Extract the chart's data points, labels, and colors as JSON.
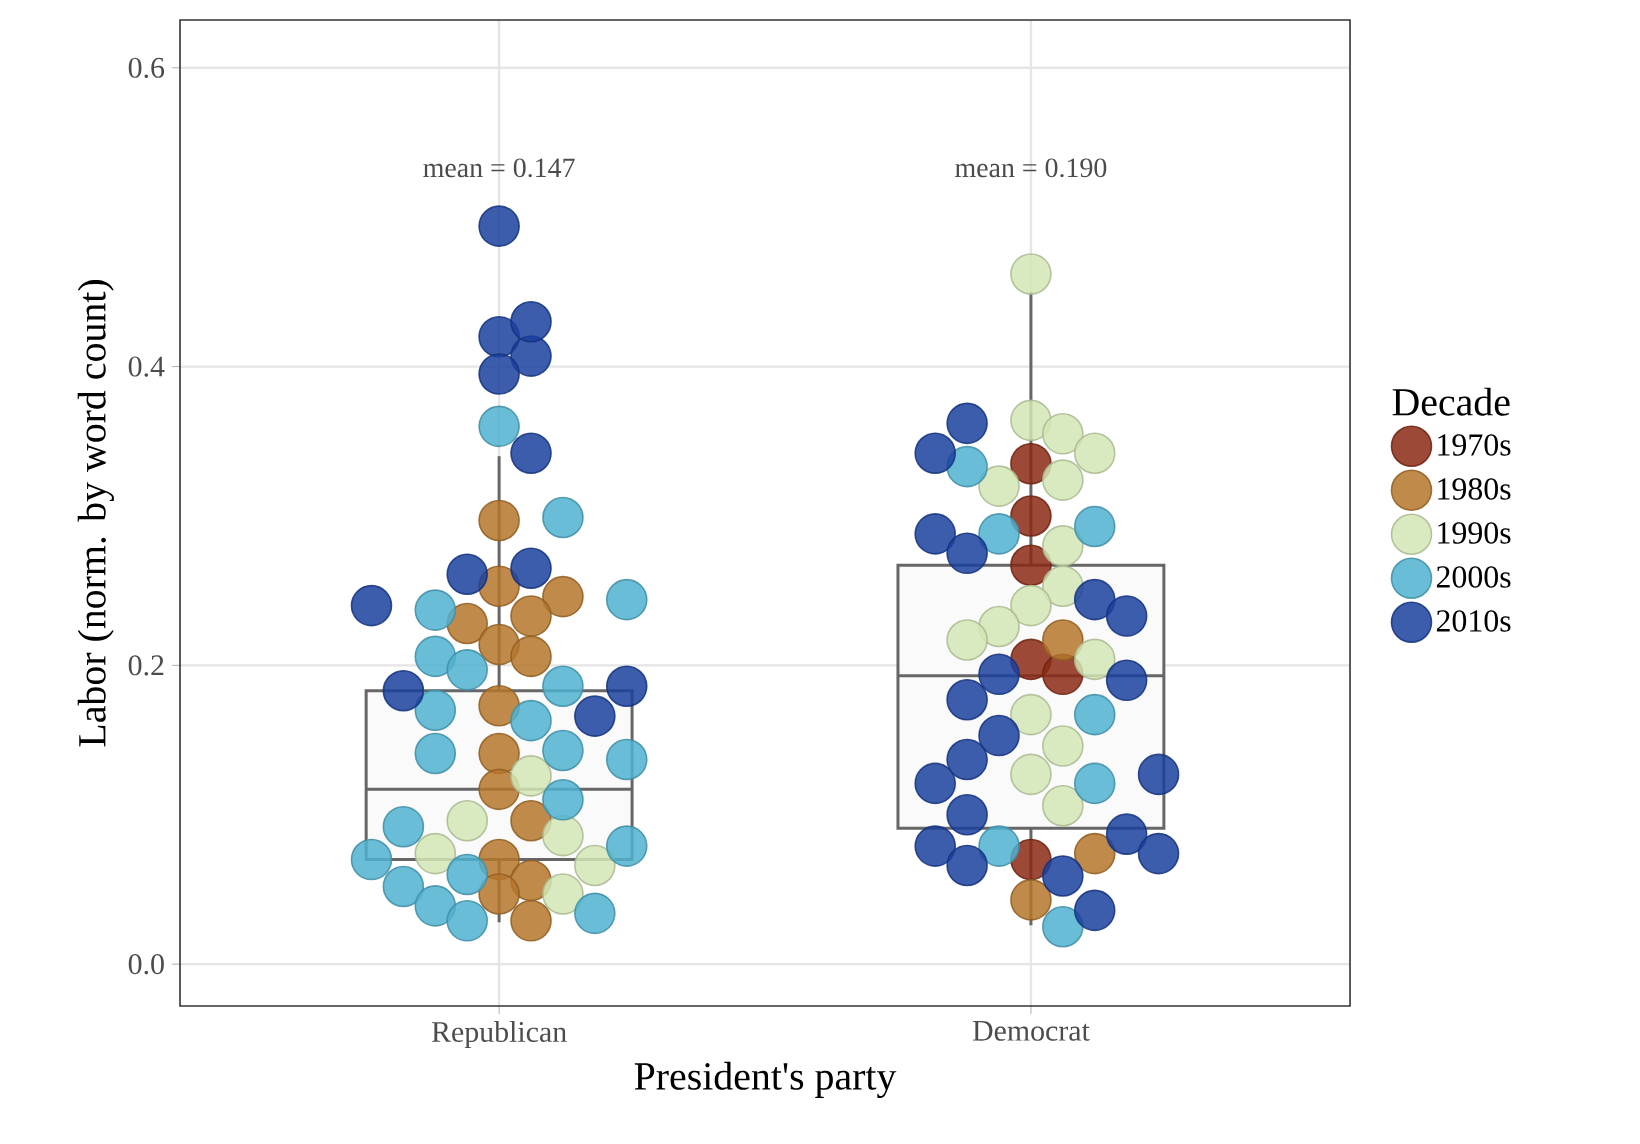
{
  "chart_data": {
    "type": "box",
    "xlabel": "President's party",
    "ylabel": "Labor (norm. by word count)",
    "legend_title": "Decade",
    "categories": [
      "Republican",
      "Democrat"
    ],
    "boxes": [
      {
        "low": 0.028,
        "q1": 0.07,
        "median": 0.117,
        "q3": 0.183,
        "high": 0.34
      },
      {
        "low": 0.026,
        "q1": 0.091,
        "median": 0.193,
        "q3": 0.267,
        "high": 0.45
      }
    ],
    "ylim": [
      -0.028,
      0.632
    ],
    "yticks": [
      {
        "value": 0,
        "label": "0.0"
      },
      {
        "value": 0.2,
        "label": "0.2"
      },
      {
        "value": 0.4,
        "label": "0.4"
      },
      {
        "value": 0.6,
        "label": "0.6"
      }
    ],
    "grid": true,
    "legend": "right",
    "marker": "circle",
    "annotations": [
      "mean = 0.147",
      "mean = 0.190"
    ],
    "series": [
      {
        "name": "1970s",
        "type": "scatter",
        "color": "#8b2a14",
        "x": [
          "Democrat",
          "Democrat",
          "Democrat",
          "Democrat",
          "Democrat",
          "Democrat"
        ],
        "values": [
          0.335,
          0.3,
          0.267,
          0.204,
          0.194,
          0.07
        ]
      },
      {
        "name": "1980s",
        "type": "scatter",
        "color": "#b5762a",
        "x": [
          "Republican",
          "Republican",
          "Republican",
          "Republican",
          "Republican",
          "Republican",
          "Republican",
          "Republican",
          "Republican",
          "Republican",
          "Republican",
          "Republican",
          "Republican",
          "Republican",
          "Republican",
          "Democrat",
          "Democrat",
          "Democrat"
        ],
        "values": [
          0.297,
          0.253,
          0.246,
          0.233,
          0.228,
          0.214,
          0.206,
          0.173,
          0.141,
          0.117,
          0.096,
          0.07,
          0.056,
          0.047,
          0.029,
          0.217,
          0.074,
          0.043
        ]
      },
      {
        "name": "1990s",
        "type": "scatter",
        "color": "#d4e6b5",
        "x": [
          "Republican",
          "Republican",
          "Republican",
          "Republican",
          "Republican",
          "Republican",
          "Democrat",
          "Democrat",
          "Democrat",
          "Democrat",
          "Democrat",
          "Democrat",
          "Democrat",
          "Democrat",
          "Democrat",
          "Democrat",
          "Democrat",
          "Democrat",
          "Democrat",
          "Democrat",
          "Democrat",
          "Democrat"
        ],
        "values": [
          0.126,
          0.096,
          0.086,
          0.074,
          0.066,
          0.047,
          0.462,
          0.364,
          0.355,
          0.342,
          0.324,
          0.32,
          0.28,
          0.253,
          0.24,
          0.226,
          0.217,
          0.204,
          0.167,
          0.146,
          0.127,
          0.106
        ]
      },
      {
        "name": "2000s",
        "type": "scatter",
        "color": "#4fb1d0",
        "x": [
          "Republican",
          "Republican",
          "Republican",
          "Republican",
          "Republican",
          "Republican",
          "Republican",
          "Republican",
          "Republican",
          "Republican",
          "Republican",
          "Republican",
          "Republican",
          "Republican",
          "Republican",
          "Republican",
          "Republican",
          "Republican",
          "Republican",
          "Republican",
          "Republican",
          "Democrat",
          "Democrat",
          "Democrat",
          "Democrat",
          "Democrat",
          "Democrat",
          "Democrat"
        ],
        "values": [
          0.36,
          0.299,
          0.237,
          0.244,
          0.206,
          0.197,
          0.186,
          0.17,
          0.163,
          0.143,
          0.141,
          0.137,
          0.11,
          0.092,
          0.079,
          0.07,
          0.06,
          0.052,
          0.039,
          0.034,
          0.029,
          0.333,
          0.293,
          0.288,
          0.167,
          0.121,
          0.079,
          0.025
        ]
      },
      {
        "name": "2010s",
        "type": "scatter",
        "color": "#1a3f9e",
        "x": [
          "Republican",
          "Republican",
          "Republican",
          "Republican",
          "Republican",
          "Republican",
          "Republican",
          "Republican",
          "Republican",
          "Republican",
          "Republican",
          "Republican",
          "Democrat",
          "Democrat",
          "Democrat",
          "Democrat",
          "Democrat",
          "Democrat",
          "Democrat",
          "Democrat",
          "Democrat",
          "Democrat",
          "Democrat",
          "Democrat",
          "Democrat",
          "Democrat",
          "Democrat",
          "Democrat",
          "Democrat",
          "Democrat",
          "Democrat",
          "Democrat"
        ],
        "values": [
          0.494,
          0.42,
          0.407,
          0.43,
          0.395,
          0.342,
          0.265,
          0.24,
          0.261,
          0.183,
          0.186,
          0.166,
          0.362,
          0.342,
          0.288,
          0.275,
          0.244,
          0.233,
          0.194,
          0.177,
          0.19,
          0.153,
          0.137,
          0.121,
          0.127,
          0.1,
          0.087,
          0.079,
          0.074,
          0.066,
          0.059,
          0.036
        ]
      }
    ]
  }
}
